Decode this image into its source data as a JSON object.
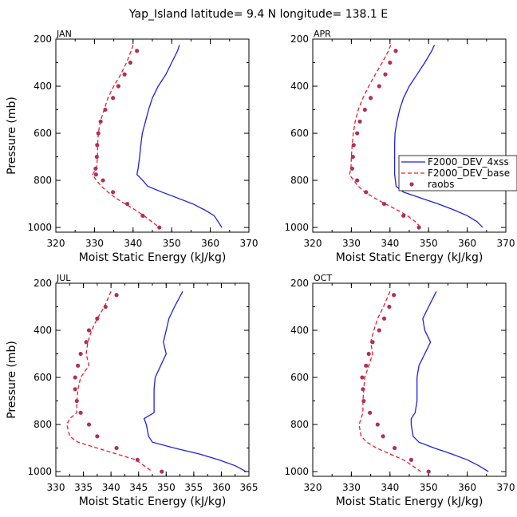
{
  "figure_title": "Yap_Island  latitude= 9.4 N longitude= 138.1 E",
  "legend": {
    "placement": "right of APR panel",
    "entries": [
      {
        "label": "F2000_DEV_4xss",
        "style": "solid",
        "color": "#1f1fe0"
      },
      {
        "label": "F2000_DEV_base",
        "style": "dashed",
        "color": "#e8202a"
      },
      {
        "label": "raobs",
        "style": "dot",
        "color": "#b0305a"
      }
    ]
  },
  "chart_data": [
    {
      "type": "line",
      "panel_label": "JAN",
      "xlabel": "Moist Static Energy (kJ/kg)",
      "ylabel": "Pressure (mb)",
      "xlim": [
        320,
        370
      ],
      "ylim": [
        200,
        1020
      ],
      "y_inverted": true,
      "xticks": [
        320,
        330,
        340,
        350,
        360,
        370
      ],
      "yticks": [
        200,
        400,
        600,
        800,
        1000
      ],
      "series": [
        {
          "name": "F2000_DEV_4xss",
          "pressure": [
            225,
            250,
            300,
            350,
            400,
            450,
            500,
            550,
            600,
            650,
            700,
            750,
            775,
            800,
            825,
            850,
            875,
            900,
            925,
            950,
            975,
            1000
          ],
          "values": [
            352,
            351.5,
            350,
            348.5,
            346.5,
            345,
            344,
            343.2,
            342.4,
            342,
            341.7,
            341.3,
            341,
            342.5,
            343.8,
            347.5,
            351.5,
            355.5,
            358.5,
            361,
            362,
            363
          ]
        },
        {
          "name": "F2000_DEV_base",
          "pressure": [
            225,
            250,
            300,
            350,
            400,
            450,
            500,
            550,
            600,
            650,
            700,
            750,
            775,
            800,
            825,
            850,
            875,
            900,
            925,
            950,
            975,
            1000
          ],
          "values": [
            340,
            339.5,
            338.3,
            336.8,
            335,
            333.5,
            332.5,
            331.5,
            331,
            330.8,
            330.8,
            330.5,
            329.5,
            330.5,
            331.8,
            333.5,
            335.5,
            338,
            340.5,
            342.8,
            344.8,
            346.8
          ]
        },
        {
          "name": "raobs",
          "pressure": [
            250,
            300,
            350,
            400,
            450,
            500,
            550,
            600,
            650,
            700,
            750,
            775,
            800,
            850,
            900,
            950,
            1000
          ],
          "values": [
            341,
            339.3,
            337.8,
            336.2,
            334.8,
            332.8,
            331.6,
            331,
            330.7,
            330.6,
            330.3,
            330.4,
            332.2,
            334.8,
            338.5,
            342.5,
            346.8
          ]
        }
      ]
    },
    {
      "type": "line",
      "panel_label": "APR",
      "xlabel": "Moist Static Energy (kJ/kg)",
      "ylabel": "",
      "xlim": [
        320,
        370
      ],
      "ylim": [
        200,
        1020
      ],
      "y_inverted": true,
      "xticks": [
        320,
        330,
        340,
        350,
        360,
        370
      ],
      "yticks": [
        200,
        400,
        600,
        800,
        1000
      ],
      "series": [
        {
          "name": "F2000_DEV_4xss",
          "pressure": [
            225,
            250,
            300,
            350,
            400,
            450,
            500,
            550,
            600,
            650,
            700,
            750,
            775,
            800,
            825,
            850,
            875,
            900,
            925,
            950,
            975,
            1000
          ],
          "values": [
            351.5,
            350.8,
            349,
            347,
            345,
            343.5,
            342.5,
            341.8,
            341.3,
            341.2,
            341.2,
            341.2,
            341.2,
            341.4,
            341.6,
            343.5,
            348,
            352.5,
            356.5,
            360,
            362.5,
            364
          ]
        },
        {
          "name": "F2000_DEV_base",
          "pressure": [
            225,
            250,
            300,
            350,
            400,
            450,
            500,
            550,
            600,
            650,
            700,
            750,
            775,
            800,
            825,
            850,
            875,
            900,
            925,
            950,
            975,
            1000
          ],
          "values": [
            340.2,
            339.6,
            338,
            336.2,
            334.5,
            333,
            331.8,
            331,
            330.5,
            330.2,
            330,
            329.9,
            329.5,
            330.6,
            331.8,
            333.5,
            336,
            338.8,
            341.8,
            344.5,
            346.5,
            348
          ]
        },
        {
          "name": "raobs",
          "pressure": [
            250,
            300,
            350,
            400,
            450,
            500,
            550,
            600,
            650,
            700,
            750,
            800,
            850,
            900,
            950,
            1000
          ],
          "values": [
            341.5,
            340,
            338.8,
            337.2,
            335,
            333.5,
            332.2,
            331.5,
            330.6,
            330.4,
            330.2,
            331.5,
            333.8,
            338.5,
            343.5,
            347.5
          ]
        }
      ]
    },
    {
      "type": "line",
      "panel_label": "JUL",
      "xlabel": "Moist Static Energy (kJ/kg)",
      "ylabel": "Pressure (mb)",
      "xlim": [
        330,
        365
      ],
      "ylim": [
        200,
        1020
      ],
      "y_inverted": true,
      "xticks": [
        330,
        335,
        340,
        345,
        350,
        355,
        360,
        365
      ],
      "yticks": [
        200,
        400,
        600,
        800,
        1000
      ],
      "series": [
        {
          "name": "F2000_DEV_4xss",
          "pressure": [
            235,
            300,
            350,
            400,
            450,
            500,
            550,
            600,
            650,
            700,
            750,
            775,
            800,
            850,
            875,
            900,
            925,
            950,
            975,
            1000
          ],
          "values": [
            353,
            351.5,
            350.5,
            350,
            349.5,
            350,
            349,
            348,
            347.8,
            347.8,
            347.8,
            346,
            346.4,
            346.8,
            347.5,
            351.5,
            356,
            359.5,
            362.5,
            364.5
          ]
        },
        {
          "name": "F2000_DEV_base",
          "pressure": [
            235,
            300,
            350,
            400,
            450,
            500,
            550,
            600,
            650,
            700,
            750,
            775,
            800,
            850,
            875,
            900,
            925,
            950,
            975,
            1000
          ],
          "values": [
            340,
            338.8,
            337.5,
            336.5,
            335.8,
            335.5,
            336,
            334.5,
            334,
            333.8,
            333.8,
            332.5,
            332,
            332.5,
            334,
            337.5,
            341,
            344.5,
            346,
            347.5
          ]
        },
        {
          "name": "raobs",
          "pressure": [
            250,
            300,
            350,
            400,
            450,
            500,
            550,
            600,
            650,
            700,
            750,
            800,
            850,
            900,
            950,
            1000
          ],
          "values": [
            341,
            339,
            337.5,
            336,
            335.5,
            334.5,
            334,
            333.5,
            333.5,
            333.8,
            334.5,
            336,
            337.5,
            341,
            344.8,
            349.2
          ]
        }
      ]
    },
    {
      "type": "line",
      "panel_label": "OCT",
      "xlabel": "Moist Static Energy (kJ/kg)",
      "ylabel": "",
      "xlim": [
        320,
        370
      ],
      "ylim": [
        200,
        1020
      ],
      "y_inverted": true,
      "xticks": [
        320,
        330,
        340,
        350,
        360,
        370
      ],
      "yticks": [
        200,
        400,
        600,
        800,
        1000
      ],
      "series": [
        {
          "name": "F2000_DEV_4xss",
          "pressure": [
            235,
            300,
            350,
            400,
            450,
            500,
            550,
            600,
            650,
            700,
            750,
            775,
            800,
            850,
            875,
            900,
            925,
            950,
            975,
            1000
          ],
          "values": [
            352,
            350,
            348.5,
            349,
            350.5,
            349,
            347.5,
            347,
            347,
            347,
            346.5,
            345.5,
            345.5,
            346,
            347.5,
            351.5,
            356,
            360,
            363,
            365.5
          ]
        },
        {
          "name": "F2000_DEV_base",
          "pressure": [
            235,
            300,
            350,
            400,
            450,
            500,
            550,
            600,
            650,
            700,
            750,
            775,
            800,
            850,
            875,
            900,
            925,
            950,
            975,
            1000
          ],
          "values": [
            340,
            338.3,
            336.8,
            335.8,
            335,
            335.5,
            334.5,
            333.5,
            333.2,
            333,
            333,
            332.5,
            332,
            332.5,
            334,
            336.5,
            340,
            343.5,
            345.8,
            348
          ]
        },
        {
          "name": "raobs",
          "pressure": [
            250,
            300,
            350,
            400,
            450,
            500,
            550,
            600,
            650,
            700,
            750,
            800,
            850,
            900,
            950,
            1000
          ],
          "values": [
            341,
            339.8,
            338.5,
            337.2,
            335.5,
            334.5,
            333.8,
            332.8,
            333,
            333.2,
            334.8,
            336.8,
            338.2,
            341.2,
            345.5,
            350
          ]
        }
      ]
    }
  ]
}
